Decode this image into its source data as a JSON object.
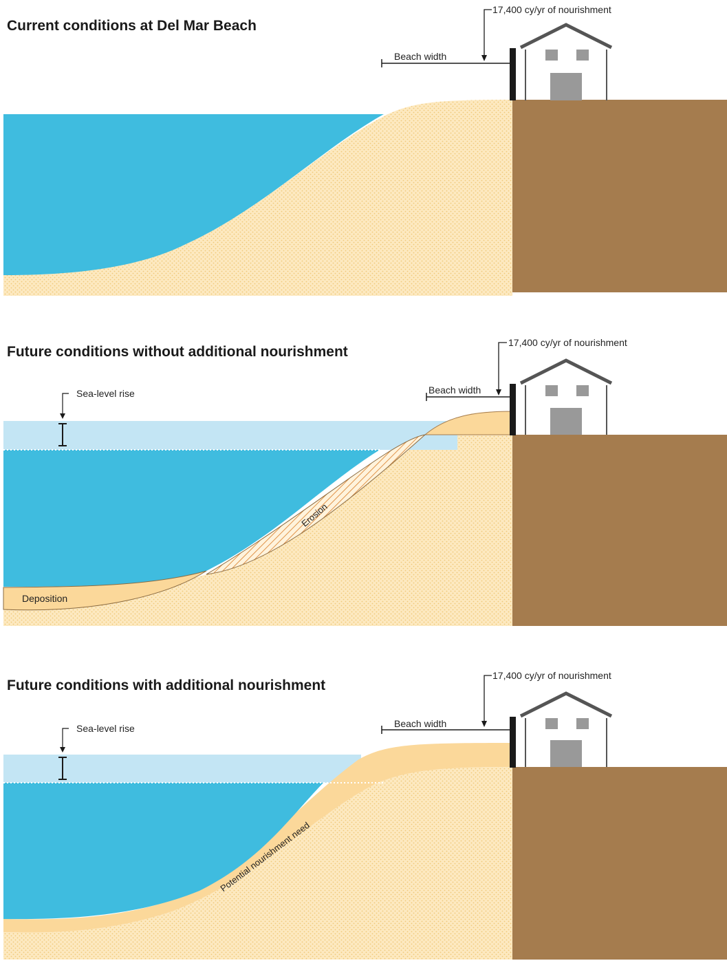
{
  "colors": {
    "water": "#3fbcdf",
    "sea_level_rise": "#c3e5f4",
    "sand": "#fde2a8",
    "sand_dots": "#f0c878",
    "nourished_sand": "#fbd89a",
    "land": "#a57c4e",
    "seawall": "#1a1a1a",
    "house_stroke": "#555555",
    "house_windows": "#999999"
  },
  "icons": {
    "house": "house-icon",
    "seawall": "seawall-icon",
    "arrow": "arrow-down-icon"
  },
  "panels": [
    {
      "title": "Current conditions at Del Mar Beach",
      "nourishment_label": "17,400 cy/yr of nourishment",
      "beach_width_label": "Beach width"
    },
    {
      "title": "Future conditions without additional nourishment",
      "nourishment_label": "17,400 cy/yr of nourishment",
      "beach_width_label": "Beach width",
      "sea_level_rise_label": "Sea-level rise",
      "erosion_label": "Erosion",
      "deposition_label": "Deposition"
    },
    {
      "title": "Future conditions with additional nourishment",
      "nourishment_label": "17,400 cy/yr of nourishment",
      "beach_width_label": "Beach width",
      "sea_level_rise_label": "Sea-level rise",
      "nourishment_need_label": "Potential nourishment need"
    }
  ]
}
